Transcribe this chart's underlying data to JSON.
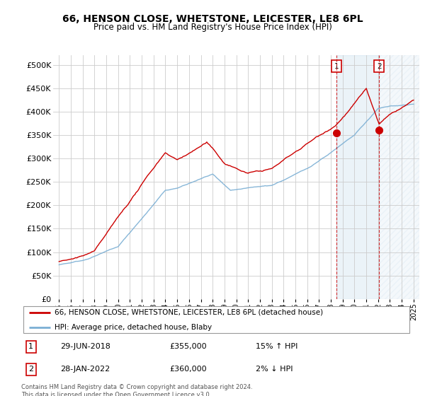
{
  "title": "66, HENSON CLOSE, WHETSTONE, LEICESTER, LE8 6PL",
  "subtitle": "Price paid vs. HM Land Registry's House Price Index (HPI)",
  "legend_line1": "66, HENSON CLOSE, WHETSTONE, LEICESTER, LE8 6PL (detached house)",
  "legend_line2": "HPI: Average price, detached house, Blaby",
  "sale1_label": "1",
  "sale1_date": "29-JUN-2018",
  "sale1_price": "£355,000",
  "sale1_hpi": "15% ↑ HPI",
  "sale2_label": "2",
  "sale2_date": "28-JAN-2022",
  "sale2_price": "£360,000",
  "sale2_hpi": "2% ↓ HPI",
  "footer": "Contains HM Land Registry data © Crown copyright and database right 2024.\nThis data is licensed under the Open Government Licence v3.0.",
  "red_color": "#cc0000",
  "blue_color": "#7bafd4",
  "marker1_date": 2018.5,
  "marker2_date": 2022.08,
  "marker1_price": 355000,
  "marker2_price": 360000,
  "ylim_min": 0,
  "ylim_max": 520000,
  "xlim_min": 1994.5,
  "xlim_max": 2025.5,
  "background": "#ffffff",
  "grid_color": "#cccccc",
  "shade_color": "#ddeeff"
}
